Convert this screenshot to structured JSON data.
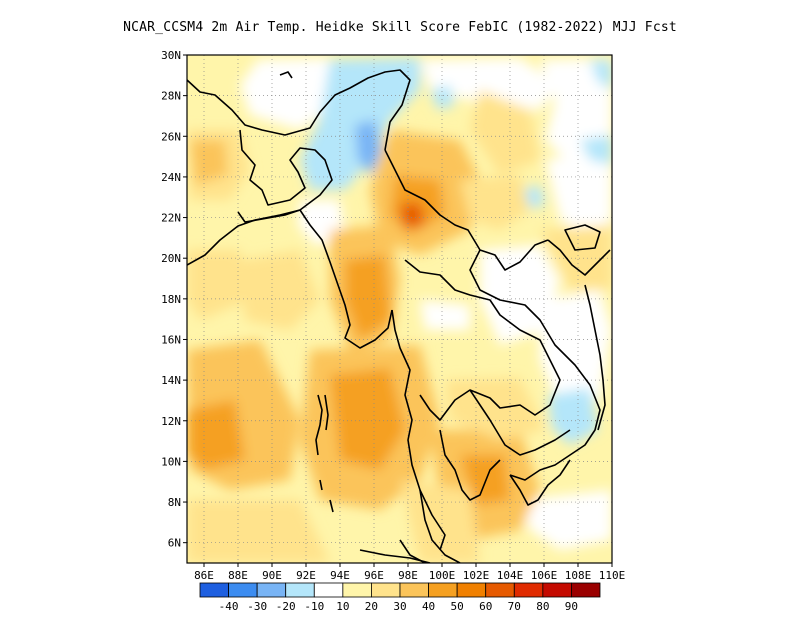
{
  "title": "NCAR_CCSM4  2m Air Temp. Heidke Skill Score FebIC (1982-2022) MJJ Fcst",
  "lat_ticks": [
    "30N",
    "28N",
    "26N",
    "24N",
    "22N",
    "20N",
    "18N",
    "16N",
    "14N",
    "12N",
    "10N",
    "8N",
    "6N"
  ],
  "lon_ticks": [
    "86E",
    "88E",
    "90E",
    "92E",
    "94E",
    "96E",
    "98E",
    "100E",
    "102E",
    "104E",
    "106E",
    "108E",
    "110E"
  ],
  "colorbar": {
    "labels": [
      "-40",
      "-30",
      "-20",
      "-10",
      "10",
      "20",
      "30",
      "40",
      "50",
      "60",
      "70",
      "80",
      "90"
    ],
    "colors": [
      "#1e5fe0",
      "#3c8cf0",
      "#78b4f5",
      "#b4e6fa",
      "#ffffff",
      "#fff5aa",
      "#ffe38c",
      "#fbc45a",
      "#f5a021",
      "#f08000",
      "#e65a00",
      "#e02b00",
      "#c40a00",
      "#9a0000"
    ]
  },
  "map": {
    "domain": {
      "lon": [
        85,
        110
      ],
      "lat": [
        5,
        30
      ]
    },
    "grid": "dotted"
  }
}
